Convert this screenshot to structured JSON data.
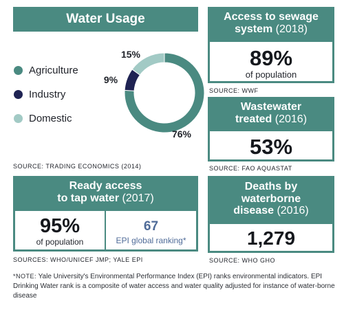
{
  "water_usage": {
    "title": "Water Usage",
    "legend": [
      {
        "label": "Agriculture",
        "color": "#4a8a81"
      },
      {
        "label": "Industry",
        "color": "#1f2353"
      },
      {
        "label": "Domestic",
        "color": "#a2cac5"
      }
    ],
    "source": "SOURCE: TRADING ECONOMICS (2014)"
  },
  "chart_data": {
    "type": "pie",
    "categories": [
      "Agriculture",
      "Industry",
      "Domestic"
    ],
    "values": [
      76,
      9,
      15
    ],
    "labels": [
      "76%",
      "9%",
      "15%"
    ],
    "colors": [
      "#4a8a81",
      "#1f2353",
      "#a2cac5"
    ]
  },
  "sewage": {
    "title_main": "Access to sewage system",
    "title_year": "(2018)",
    "value": "89%",
    "sub": "of population",
    "source": "SOURCE: WWF"
  },
  "wastewater": {
    "title_main": "Wastewater treated",
    "title_year": "(2016)",
    "value": "53%",
    "source": "SOURCE: FAO AQUASTAT"
  },
  "tap_water": {
    "title_line1": "Ready access",
    "title_line2": "to tap water",
    "title_year": "(2017)",
    "value": "95%",
    "sub": "of population",
    "ranking_value": "67",
    "ranking_label": "EPI global ranking*",
    "source": "SOURCES: WHO/UNICEF JMP; YALE EPI"
  },
  "deaths": {
    "title_line1": "Deaths by",
    "title_line2": "waterborne",
    "title_line3": "disease",
    "title_year": "(2016)",
    "value": "1,279",
    "source": "SOURCE: WHO GHO"
  },
  "note": {
    "prefix": "*NOTE:",
    "text": "Yale University's Environmental Performance Index (EPI) ranks environmental indicators. EPI Drinking Water rank is a composite of water access and water quality adjusted for instance of water-borne disease"
  }
}
